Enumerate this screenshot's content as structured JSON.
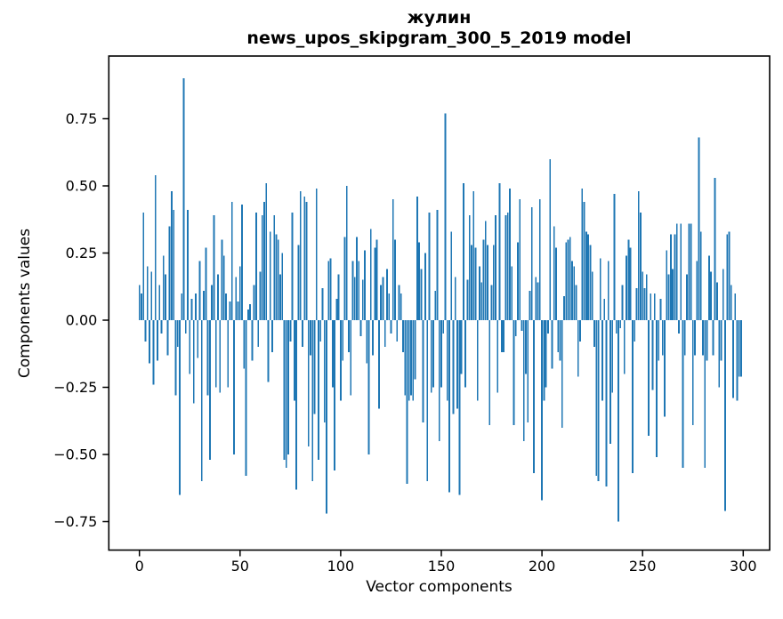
{
  "figure": {
    "title_line1": "жулин",
    "title_line2": "news_upos_skipgram_300_5_2019 model",
    "xlabel": "Vector components",
    "ylabel": "Components values"
  },
  "chart_data": {
    "type": "bar",
    "title": "жулин\nnews_upos_skipgram_300_5_2019 model",
    "xlabel": "Vector components",
    "ylabel": "Components values",
    "bar_color": "#1f77b4",
    "background": "#ffffff",
    "grid": false,
    "legend": null,
    "n_components": 300,
    "x_start": 0,
    "xlim": [
      -15.2,
      313.1
    ],
    "ylim": [
      -0.856,
      0.983
    ],
    "x_ticks": [
      0,
      50,
      100,
      150,
      200,
      250,
      300
    ],
    "x_tick_labels": [
      "0",
      "50",
      "100",
      "150",
      "200",
      "250",
      "300"
    ],
    "y_ticks": [
      0.75,
      0.5,
      0.25,
      0,
      -0.25,
      -0.5,
      -0.75
    ],
    "y_tick_labels": [
      "0.75",
      "0.50",
      "0.25",
      "0.00",
      "−0.25",
      "−0.50",
      "−0.75"
    ],
    "values": [
      0.13,
      0.1,
      0.4,
      -0.08,
      0.2,
      -0.16,
      0.18,
      -0.24,
      0.54,
      -0.15,
      0.13,
      -0.05,
      0.24,
      0.17,
      -0.13,
      0.35,
      0.48,
      0.41,
      -0.28,
      -0.1,
      -0.65,
      0.1,
      0.9,
      -0.05,
      0.41,
      -0.2,
      0.08,
      -0.31,
      0.1,
      -0.14,
      0.22,
      -0.6,
      0.11,
      0.27,
      -0.28,
      -0.52,
      0.13,
      0.39,
      -0.25,
      0.17,
      -0.27,
      0.3,
      0.24,
      0.1,
      -0.25,
      0.07,
      0.44,
      -0.5,
      0.16,
      0.07,
      0.2,
      0.43,
      -0.18,
      -0.58,
      0.04,
      0.06,
      -0.15,
      0.13,
      0.4,
      -0.1,
      0.18,
      0.39,
      0.44,
      0.51,
      -0.23,
      0.33,
      -0.12,
      0.39,
      0.32,
      0.3,
      0.17,
      0.25,
      -0.52,
      -0.55,
      -0.5,
      -0.08,
      0.4,
      -0.3,
      -0.63,
      0.28,
      0.48,
      -0.1,
      0.46,
      0.44,
      -0.47,
      -0.13,
      -0.6,
      -0.35,
      0.49,
      -0.52,
      -0.08,
      0.12,
      -0.38,
      -0.72,
      0.22,
      0.23,
      -0.25,
      -0.56,
      0.08,
      0.17,
      -0.3,
      -0.15,
      0.31,
      0.5,
      -0.12,
      -0.28,
      0.22,
      0.16,
      0.31,
      0.22,
      -0.06,
      0.15,
      0.26,
      -0.16,
      -0.5,
      0.34,
      -0.13,
      0.27,
      0.3,
      -0.33,
      0.13,
      0.16,
      -0.1,
      0.19,
      0.1,
      -0.05,
      0.45,
      0.3,
      -0.08,
      0.13,
      0.1,
      -0.12,
      -0.28,
      -0.61,
      -0.3,
      -0.28,
      -0.3,
      -0.22,
      0.46,
      0.29,
      0.19,
      -0.38,
      0.25,
      -0.6,
      0.4,
      -0.27,
      -0.25,
      0.11,
      0.41,
      -0.45,
      -0.25,
      -0.05,
      0.77,
      -0.3,
      -0.64,
      0.33,
      -0.35,
      0.16,
      -0.33,
      -0.65,
      -0.2,
      0.51,
      -0.25,
      0.15,
      0.39,
      0.28,
      0.48,
      0.27,
      -0.3,
      0.2,
      0.14,
      0.3,
      0.37,
      0.28,
      -0.39,
      0.13,
      0.28,
      0.39,
      -0.27,
      0.51,
      -0.12,
      -0.12,
      0.39,
      0.4,
      0.49,
      0.2,
      -0.39,
      -0.06,
      0.29,
      0.45,
      -0.04,
      -0.45,
      -0.2,
      -0.38,
      0.11,
      0.42,
      -0.57,
      0.16,
      0.14,
      0.45,
      -0.67,
      -0.3,
      -0.25,
      -0.05,
      0.6,
      -0.18,
      0.35,
      0.27,
      -0.12,
      -0.15,
      -0.4,
      0.09,
      0.29,
      0.3,
      0.31,
      0.22,
      0.2,
      0.13,
      -0.21,
      -0.08,
      0.49,
      0.44,
      0.33,
      0.32,
      0.28,
      0.18,
      -0.1,
      -0.58,
      -0.6,
      0.23,
      -0.3,
      0.08,
      -0.62,
      0.22,
      -0.46,
      -0.27,
      0.47,
      -0.05,
      -0.75,
      -0.03,
      0.13,
      -0.2,
      0.24,
      0.3,
      0.27,
      -0.57,
      -0.08,
      0.12,
      0.48,
      0.4,
      0.18,
      0.12,
      0.17,
      -0.43,
      0.1,
      -0.26,
      0.1,
      -0.51,
      -0.15,
      0.08,
      -0.13,
      -0.36,
      0.26,
      0.17,
      0.32,
      0.19,
      0.32,
      0.36,
      -0.05,
      0.36,
      -0.55,
      -0.13,
      0.17,
      0.36,
      0.36,
      -0.39,
      -0.13,
      0.22,
      0.68,
      0.33,
      -0.13,
      -0.55,
      -0.15,
      0.24,
      0.18,
      -0.13,
      0.53,
      0.14,
      -0.25,
      -0.15,
      0.19,
      -0.71,
      0.32,
      0.33,
      0.13,
      -0.29,
      0.1,
      -0.3,
      -0.21,
      -0.21
    ]
  }
}
